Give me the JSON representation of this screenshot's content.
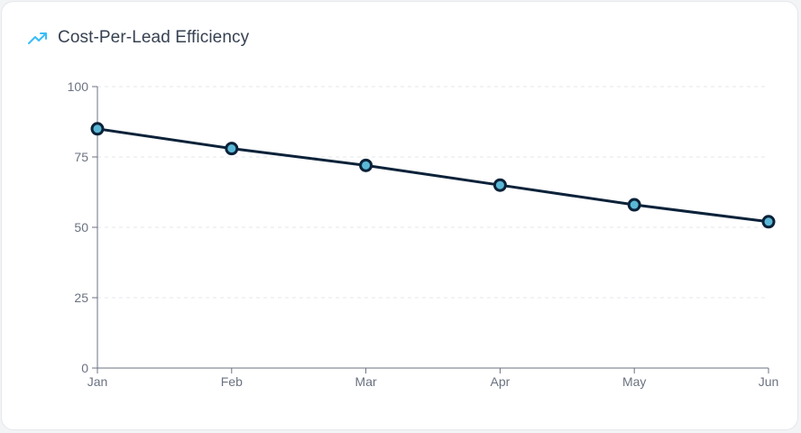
{
  "header": {
    "title": "Cost-Per-Lead Efficiency",
    "icon": "trending-up-icon",
    "icon_color": "#38bdf8"
  },
  "chart_data": {
    "type": "line",
    "title": "Cost-Per-Lead Efficiency",
    "xlabel": "",
    "ylabel": "",
    "categories": [
      "Jan",
      "Feb",
      "Mar",
      "Apr",
      "May",
      "Jun"
    ],
    "series": [
      {
        "values": [
          85,
          78,
          72,
          65,
          58,
          52
        ]
      }
    ],
    "ylim": [
      0,
      100
    ],
    "yticks": [
      0,
      25,
      50,
      75,
      100
    ],
    "grid": true,
    "colors": {
      "line": "#0b2239",
      "point_fill": "#5ab8d6",
      "grid": "#e5e7eb",
      "axis": "#6b7280"
    }
  }
}
